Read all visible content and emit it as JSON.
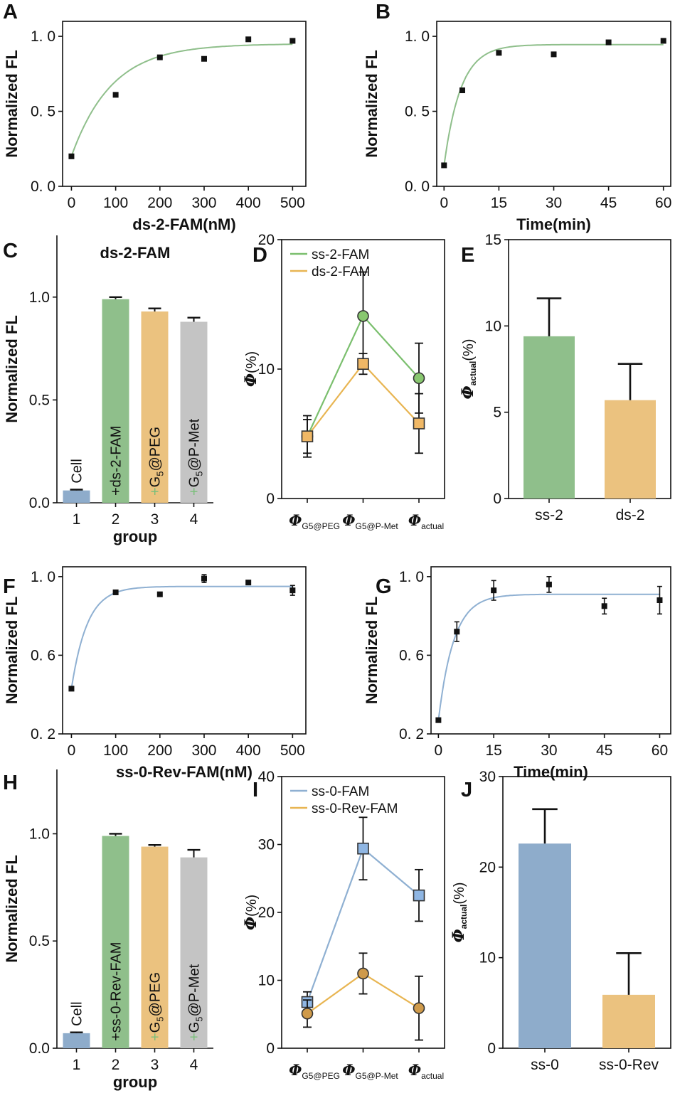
{
  "colors": {
    "green": "#8fbf8b",
    "orange": "#ebc27f",
    "gray": "#c4c4c4",
    "blue": "#8eaccb",
    "plus_green": "#7bbf7b",
    "line_green": "#7bbf6e",
    "line_orange": "#e8b552",
    "line_blue": "#8fb0d2",
    "marker_green": "#88c76f",
    "marker_orange": "#f0b866",
    "marker_blue": "#8fb6e3",
    "marker_brown": "#cf9a4a"
  },
  "chart_data": [
    {
      "id": "A",
      "panel_label": "A",
      "type": "scatter",
      "xlabel": "ds-2-FAM(nM)",
      "ylabel": "Normalized FL",
      "xlim": [
        -20,
        530
      ],
      "ylim": [
        0,
        1.1
      ],
      "xticks": [
        0,
        100,
        200,
        300,
        400,
        500
      ],
      "yticks": [
        0,
        0.5,
        1.0
      ],
      "ytick_labels": [
        "0. 0",
        "0. 5",
        "1. 0"
      ],
      "points": {
        "x": [
          0,
          100,
          200,
          300,
          400,
          500
        ],
        "y": [
          0.2,
          0.61,
          0.86,
          0.85,
          0.98,
          0.97
        ]
      },
      "fit": {
        "model": "exp",
        "a": 0.2,
        "b": 0.95,
        "k": 0.011,
        "color": "green"
      }
    },
    {
      "id": "B",
      "panel_label": "B",
      "type": "scatter",
      "xlabel": "Time(min)",
      "ylabel": "Normalized FL",
      "xlim": [
        -2,
        62
      ],
      "ylim": [
        0,
        1.1
      ],
      "xticks": [
        0,
        15,
        30,
        45,
        60
      ],
      "yticks": [
        0,
        0.5,
        1.0
      ],
      "ytick_labels": [
        "0. 0",
        "0. 5",
        "1. 0"
      ],
      "points": {
        "x": [
          0,
          5,
          15,
          30,
          45,
          60
        ],
        "y": [
          0.14,
          0.64,
          0.89,
          0.88,
          0.96,
          0.97
        ]
      },
      "fit": {
        "model": "exp",
        "a": 0.14,
        "b": 0.945,
        "k": 0.22,
        "color": "green"
      }
    },
    {
      "id": "C",
      "panel_label": "C",
      "type": "bar",
      "title": "ds-2-FAM",
      "xlabel": "group",
      "ylabel": "Normalized FL",
      "ylim": [
        0,
        1.3
      ],
      "yticks": [
        0,
        0.5,
        1.0
      ],
      "ytick_labels": [
        "0.0",
        "0.5",
        "1.0"
      ],
      "categories": [
        "1",
        "2",
        "3",
        "4"
      ],
      "values": [
        0.06,
        0.99,
        0.93,
        0.88
      ],
      "errors": [
        0.004,
        0.01,
        0.015,
        0.02
      ],
      "bar_colors": [
        "blue",
        "green",
        "orange",
        "gray"
      ],
      "bar_texts": [
        {
          "plus": "",
          "main": "Cell",
          "sub": "",
          "after": ""
        },
        {
          "plus": "+",
          "main": "ds-2-FAM",
          "sub": "",
          "after": ""
        },
        {
          "plus": "+",
          "main": "G",
          "sub": "5",
          "after": "@PEG"
        },
        {
          "plus": "+",
          "main": "G",
          "sub": "5",
          "after": "@P-Met"
        }
      ]
    },
    {
      "id": "D",
      "panel_label": "D",
      "type": "line",
      "ylabel_symbol": "Φ",
      "ylabel_unit": "(%)",
      "ylim": [
        0,
        20
      ],
      "yticks": [
        0,
        10,
        20
      ],
      "categories": [
        {
          "sym": "Φ",
          "sub": "G5@PEG"
        },
        {
          "sym": "Φ",
          "sub": "G5@P-Met"
        },
        {
          "sym": "Φ",
          "sub": "actual"
        }
      ],
      "series": [
        {
          "name": "ss-2-FAM",
          "values": [
            4.8,
            14.1,
            9.3
          ],
          "errors": [
            1.3,
            3.4,
            2.7
          ],
          "line_color": "line_green",
          "marker_color": "marker_green",
          "marker": "circle"
        },
        {
          "name": "ds-2-FAM",
          "values": [
            4.8,
            10.4,
            5.8
          ],
          "errors": [
            1.6,
            0.8,
            2.3
          ],
          "line_color": "line_orange",
          "marker_color": "marker_orange",
          "marker": "square"
        }
      ]
    },
    {
      "id": "E",
      "panel_label": "E",
      "type": "bar",
      "ylabel_symbol": "Φ",
      "ylabel_sub": "actual",
      "ylabel_unit": "(%)",
      "ylim": [
        0,
        15
      ],
      "yticks": [
        0,
        5,
        10,
        15
      ],
      "categories": [
        "ss-2",
        "ds-2"
      ],
      "values": [
        9.4,
        5.7
      ],
      "errors": [
        2.2,
        2.1
      ],
      "bar_colors": [
        "green",
        "orange"
      ]
    },
    {
      "id": "F",
      "panel_label": "F",
      "type": "scatter",
      "xlabel": "ss-0-Rev-FAM(nM)",
      "ylabel": "Normalized FL",
      "xlim": [
        -20,
        530
      ],
      "ylim": [
        0.2,
        1.05
      ],
      "xticks": [
        0,
        100,
        200,
        300,
        400,
        500
      ],
      "yticks": [
        0.2,
        0.6,
        1.0
      ],
      "ytick_labels": [
        "0. 2",
        "0. 6",
        "1. 0"
      ],
      "points": {
        "x": [
          0,
          100,
          200,
          300,
          400,
          500
        ],
        "y": [
          0.43,
          0.92,
          0.91,
          0.99,
          0.97,
          0.93
        ],
        "err": [
          0.005,
          0.008,
          0.008,
          0.02,
          0.01,
          0.025
        ]
      },
      "fit": {
        "model": "exp",
        "a": 0.43,
        "b": 0.95,
        "k": 0.028,
        "color": "line_blue"
      }
    },
    {
      "id": "G",
      "panel_label": "G",
      "type": "scatter",
      "xlabel": "Time(min)",
      "ylabel": "Normalized FL",
      "xlim": [
        -2,
        63
      ],
      "ylim": [
        0.2,
        1.05
      ],
      "xticks": [
        0,
        15,
        30,
        45,
        60
      ],
      "yticks": [
        0.2,
        0.6,
        1.0
      ],
      "ytick_labels": [
        "0. 2",
        "0. 6",
        "1. 0"
      ],
      "points": {
        "x": [
          0,
          5,
          15,
          30,
          45,
          60
        ],
        "y": [
          0.27,
          0.72,
          0.93,
          0.96,
          0.85,
          0.88
        ],
        "err": [
          0.005,
          0.05,
          0.05,
          0.04,
          0.04,
          0.07
        ]
      },
      "fit": {
        "model": "exp",
        "a": 0.27,
        "b": 0.91,
        "k": 0.24,
        "color": "line_blue"
      }
    },
    {
      "id": "H",
      "panel_label": "H",
      "type": "bar",
      "xlabel": "group",
      "ylabel": "Normalized FL",
      "ylim": [
        0,
        1.3
      ],
      "yticks": [
        0,
        0.5,
        1.0
      ],
      "ytick_labels": [
        "0.0",
        "0.5",
        "1.0"
      ],
      "categories": [
        "1",
        "2",
        "3",
        "4"
      ],
      "values": [
        0.07,
        0.99,
        0.94,
        0.89
      ],
      "errors": [
        0.004,
        0.01,
        0.008,
        0.035
      ],
      "bar_colors": [
        "blue",
        "green",
        "orange",
        "gray"
      ],
      "bar_texts": [
        {
          "plus": "",
          "main": "Cell",
          "sub": "",
          "after": ""
        },
        {
          "plus": "+",
          "main": "ss-0-Rev-FAM",
          "sub": "",
          "after": ""
        },
        {
          "plus": "+",
          "main": "G",
          "sub": "5",
          "after": "@PEG"
        },
        {
          "plus": "+",
          "main": "G",
          "sub": "5",
          "after": "@P-Met"
        }
      ]
    },
    {
      "id": "I",
      "panel_label": "I",
      "type": "line",
      "ylabel_symbol": "Φ",
      "ylabel_unit": "(%)",
      "ylim": [
        0,
        40
      ],
      "yticks": [
        0,
        10,
        20,
        30,
        40
      ],
      "categories": [
        {
          "sym": "Φ",
          "sub": "G5@PEG"
        },
        {
          "sym": "Φ",
          "sub": "G5@P-Met"
        },
        {
          "sym": "Φ",
          "sub": "actual"
        }
      ],
      "series": [
        {
          "name": "ss-0-FAM",
          "values": [
            6.8,
            29.4,
            22.5
          ],
          "errors": [
            1.5,
            4.6,
            3.8
          ],
          "line_color": "line_blue",
          "marker_color": "marker_blue",
          "marker": "square"
        },
        {
          "name": "ss-0-Rev-FAM",
          "values": [
            5.1,
            11.0,
            5.9
          ],
          "errors": [
            2.0,
            3.0,
            4.7
          ],
          "line_color": "line_orange",
          "marker_color": "marker_brown",
          "marker": "circle"
        }
      ]
    },
    {
      "id": "J",
      "panel_label": "J",
      "type": "bar",
      "ylabel_symbol": "Φ",
      "ylabel_sub": "actual",
      "ylabel_unit": "(%)",
      "ylim": [
        0,
        30
      ],
      "yticks": [
        0,
        10,
        20,
        30
      ],
      "categories": [
        "ss-0",
        "ss-0-Rev"
      ],
      "values": [
        22.6,
        5.9
      ],
      "errors": [
        3.8,
        4.6
      ],
      "bar_colors": [
        "blue",
        "orange"
      ]
    }
  ]
}
